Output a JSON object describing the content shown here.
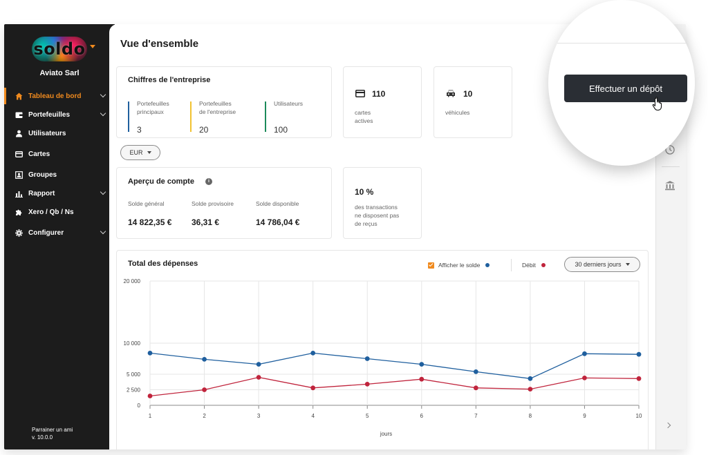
{
  "sidebar": {
    "logo": "soldo",
    "company": "Aviato Sarl",
    "items": [
      {
        "label": "Tableau de bord",
        "icon": "home-icon",
        "has_chevron": true,
        "active": true
      },
      {
        "label": "Portefeuilles",
        "icon": "wallet-icon",
        "has_chevron": true
      },
      {
        "label": "Utilisateurs",
        "icon": "user-icon",
        "has_chevron": false
      },
      {
        "label": "Cartes",
        "icon": "card-icon",
        "has_chevron": false
      },
      {
        "label": "Groupes",
        "icon": "groups-icon",
        "has_chevron": false
      },
      {
        "label": "Rapport",
        "icon": "bar-chart-icon",
        "has_chevron": true
      },
      {
        "label": "Xero / Qb / Ns",
        "icon": "puzzle-icon",
        "has_chevron": false
      },
      {
        "label": "Configurer",
        "icon": "gear-icon",
        "has_chevron": true
      }
    ],
    "sponsor": "Parrainer un ami",
    "version": "v. 10.0.0"
  },
  "page_title": "Vue d'ensemble",
  "company_card": {
    "title": "Chiffres de l'entreprise",
    "stats": [
      {
        "label_1": "Portefeuilles",
        "label_2": "principaux",
        "value": "3",
        "color": "#1f5f9e"
      },
      {
        "label_1": "Portefeuilles",
        "label_2": "de l'entreprise",
        "value": "20",
        "color": "#f2c230"
      },
      {
        "label_1": "Utilisateurs",
        "label_2": "",
        "value": "100",
        "color": "#1c8a5a"
      }
    ]
  },
  "cards_card": {
    "count": "110",
    "label_1": "cartes",
    "label_2": "actives"
  },
  "vehicles_card": {
    "count": "10",
    "label": "véhicules"
  },
  "currency_select": "EUR",
  "account_card": {
    "title": "Aperçu de compte",
    "columns": [
      {
        "label": "Solde général",
        "value": "14 822,35 €"
      },
      {
        "label": "Solde provisoire",
        "value": "36,31 €"
      },
      {
        "label": "Solde disponible",
        "value": "14 786,04 €"
      }
    ]
  },
  "receipts_card": {
    "percent": "10 %",
    "line_1": "des transactions",
    "line_2": "ne disposent pas",
    "line_3": "de reçus"
  },
  "expenses": {
    "title": "Total des dépenses",
    "show_balance_label": "Afficher le solde",
    "debit_label": "Débit",
    "period_select": "30 derniers jours"
  },
  "deposit_button": "Effectuer un dépôt",
  "colors": {
    "accent": "#f08a1e",
    "balance": "#1f5f9e",
    "debit": "#c0243c",
    "sidebar": "#1c1c1c"
  },
  "chart_data": {
    "type": "line",
    "x": [
      1,
      2,
      3,
      4,
      5,
      6,
      7,
      8,
      9,
      10
    ],
    "xlabel": "jours",
    "ylabel": "",
    "ylim": [
      0,
      20000
    ],
    "yticks": [
      0,
      2500,
      5000,
      10000,
      20000
    ],
    "ytick_labels": [
      "0",
      "2 500",
      "5 000",
      "10 000",
      "20 000"
    ],
    "grid": true,
    "series": [
      {
        "name": "Afficher le solde",
        "color": "#1f5f9e",
        "values": [
          8400,
          7400,
          6600,
          8400,
          7500,
          6600,
          5400,
          4300,
          8300,
          8200
        ]
      },
      {
        "name": "Débit",
        "color": "#c0243c",
        "values": [
          1500,
          2500,
          4500,
          2800,
          3400,
          4200,
          2800,
          2600,
          4400,
          4300
        ]
      }
    ]
  }
}
